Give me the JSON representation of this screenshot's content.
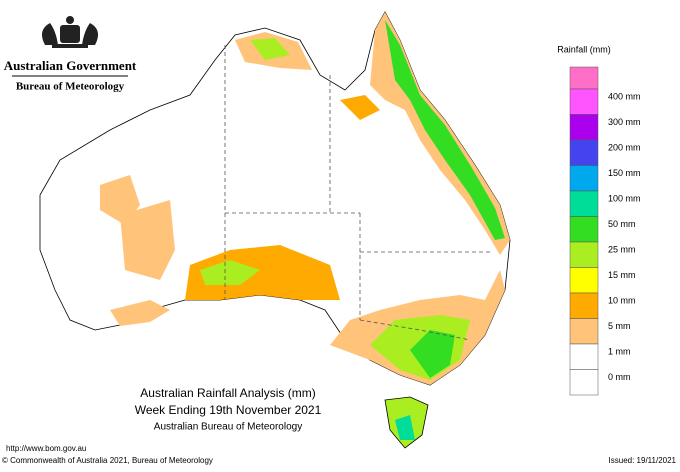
{
  "header": {
    "government": "Australian Government",
    "agency": "Bureau of Meteorology"
  },
  "legend": {
    "title": "Rainfall (mm)",
    "items": [
      {
        "label": "400 mm",
        "color": "#ff55ff"
      },
      {
        "label": "300 mm",
        "color": "#aa00ee"
      },
      {
        "label": "200 mm",
        "color": "#4444ee"
      },
      {
        "label": "150 mm",
        "color": "#00a8ee"
      },
      {
        "label": "100 mm",
        "color": "#00dd99"
      },
      {
        "label": "50 mm",
        "color": "#33dd22"
      },
      {
        "label": "25 mm",
        "color": "#aaee22"
      },
      {
        "label": "15 mm",
        "color": "#ffff00"
      },
      {
        "label": "10 mm",
        "color": "#ffaa00"
      },
      {
        "label": "5 mm",
        "color": "#ffc37a"
      },
      {
        "label": "1 mm",
        "color": "#ffffff"
      },
      {
        "label": "0 mm",
        "color": "#ffffff"
      }
    ]
  },
  "map": {
    "title": "Australian Rainfall Analysis (mm)",
    "subtitle": "Week Ending 19th November 2021",
    "source": "Australian Bureau of Meteorology"
  },
  "footer": {
    "url": "http://www.bom.gov.au",
    "copyright": "© Commonwealth of Australia 2021, Bureau of Meteorology",
    "issued": "Issued: 19/11/2021"
  }
}
